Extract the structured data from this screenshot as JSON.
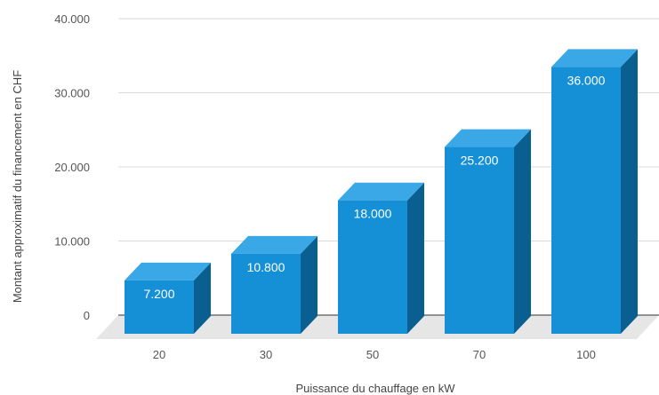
{
  "chart_data": {
    "type": "bar",
    "style": "3d",
    "categories": [
      "20",
      "30",
      "50",
      "70",
      "100"
    ],
    "values": [
      7200,
      10800,
      18000,
      25200,
      36000
    ],
    "data_labels": [
      "7.200",
      "10.800",
      "18.000",
      "25.200",
      "36.000"
    ],
    "xlabel": "Puissance du chauffage en kW",
    "ylabel": "Montant approximatif du financement en CHF",
    "ylim": [
      0,
      40000
    ],
    "yticks": [
      0,
      10000,
      20000,
      30000,
      40000
    ],
    "ytick_labels": [
      "0",
      "10.000",
      "20.000",
      "30.000",
      "40.000"
    ],
    "grid": true,
    "legend": "none",
    "colors": {
      "bar_front": "#1590d6",
      "bar_top": "#3aa8e6",
      "bar_side": "#0a5f91",
      "floor": "#e6e6e6",
      "grid": "#d9d9d9"
    }
  }
}
